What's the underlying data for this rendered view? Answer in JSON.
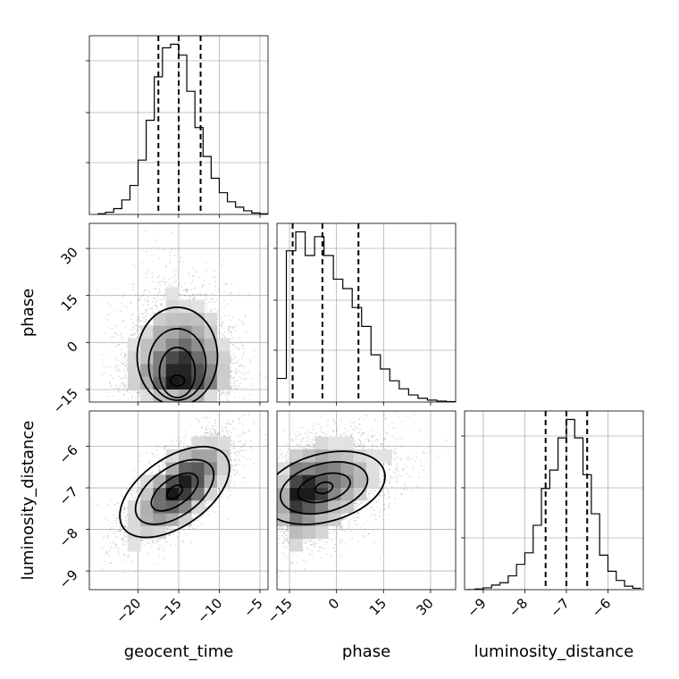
{
  "chart_data": {
    "type": "corner",
    "parameters": [
      "geocent_time",
      "phase",
      "luminosity_distance"
    ],
    "axis_labels": {
      "x": [
        "geocent_time",
        "phase",
        "luminosity_distance"
      ],
      "y": [
        "",
        "phase",
        "luminosity_distance"
      ]
    },
    "ranges": {
      "geocent_time": [
        -26,
        -4
      ],
      "phase": [
        -19,
        38
      ],
      "luminosity_distance": [
        -9.45,
        -5.15
      ]
    },
    "ticks": {
      "geocent_time": [
        -20,
        -15,
        -10,
        -5
      ],
      "phase": [
        -15,
        0,
        15,
        30
      ],
      "luminosity_distance": [
        -9,
        -8,
        -7,
        -6
      ]
    },
    "tick_labels": {
      "geocent_time": [
        "−20",
        "−15",
        "−10",
        "−5"
      ],
      "phase": [
        "−15",
        "0",
        "15",
        "30"
      ],
      "luminosity_distance": [
        "−9",
        "−8",
        "−7",
        "−6"
      ]
    },
    "grid": true,
    "histograms": [
      {
        "parameter": "geocent_time",
        "edges": [
          -25,
          -24,
          -23,
          -22,
          -21,
          -20,
          -19,
          -18,
          -17,
          -16,
          -15,
          -14,
          -13,
          -12,
          -11,
          -10,
          -9,
          -8,
          -7,
          -6,
          -5,
          -4
        ],
        "counts": [
          0.2,
          0.6,
          1.6,
          4,
          8,
          15,
          26,
          38,
          46,
          47,
          44,
          34,
          24,
          16,
          10,
          6,
          3.5,
          2,
          1,
          0.4,
          0.2
        ],
        "quantiles": [
          -17.5,
          -15,
          -12.3
        ]
      },
      {
        "parameter": "phase",
        "edges": [
          -19,
          -16,
          -13,
          -10,
          -7,
          -4,
          -1,
          2,
          5,
          8,
          11,
          14,
          17,
          20,
          23,
          26,
          29,
          32,
          35,
          38
        ],
        "counts": [
          5,
          32,
          36,
          31,
          35,
          31,
          26,
          24,
          20,
          16,
          10,
          7,
          4.5,
          2.8,
          1.5,
          0.8,
          0.4,
          0.2,
          0.1
        ],
        "quantiles": [
          -14,
          -4.5,
          7
        ]
      },
      {
        "parameter": "luminosity_distance",
        "edges": [
          -9.4,
          -9.2,
          -9.0,
          -8.8,
          -8.6,
          -8.4,
          -8.2,
          -8.0,
          -7.8,
          -7.6,
          -7.4,
          -7.2,
          -7.0,
          -6.8,
          -6.6,
          -6.4,
          -6.2,
          -6.0,
          -5.8,
          -5.6,
          -5.4,
          -5.2
        ],
        "counts": [
          0,
          0.3,
          0.8,
          2,
          3,
          6,
          11,
          16,
          28,
          44,
          52,
          66,
          74,
          66,
          50,
          33,
          15,
          8,
          4,
          1.5,
          0.6
        ],
        "quantiles": [
          -7.5,
          -7.0,
          -6.5
        ]
      }
    ],
    "joint_panels": [
      {
        "x": "geocent_time",
        "y": "phase",
        "peak": [
          -15.5,
          -13
        ],
        "contour_levels": 4
      },
      {
        "x": "geocent_time",
        "y": "luminosity_distance",
        "peak": [
          -15.5,
          -7.1
        ],
        "contour_levels": 4
      },
      {
        "x": "phase",
        "y": "luminosity_distance",
        "peak": [
          -4,
          -7.0
        ],
        "contour_levels": 4
      }
    ]
  }
}
